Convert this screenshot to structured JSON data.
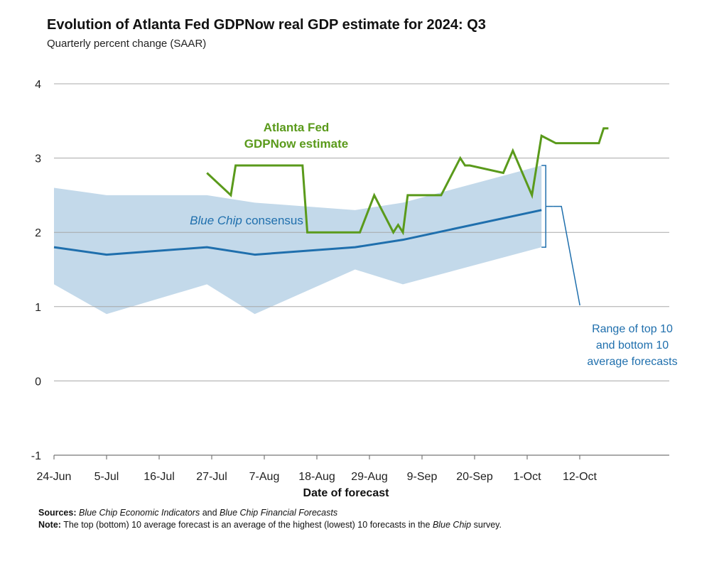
{
  "title": "Evolution of Atlanta Fed GDPNow real GDP estimate for 2024: Q3",
  "subtitle": "Quarterly percent change (SAAR)",
  "footer": {
    "sources_label": "Sources:",
    "sources_src1": "Blue Chip Economic Indicators",
    "sources_and": " and ",
    "sources_src2": "Blue Chip Financial Forecasts",
    "note_label": "Note:",
    "note_text": " The top (bottom) 10 average forecast is an average of the highest (lowest) 10 forecasts in the ",
    "note_italic": "Blue Chip",
    "note_end": " survey."
  },
  "colors": {
    "gdpnow": "#5a9a1b",
    "consensus": "#1f6fad",
    "band": "#c3d9ea",
    "grid": "#a8a8a8",
    "axis": "#777777"
  },
  "chart_data": {
    "type": "line",
    "xlabel": "Date of forecast",
    "ylabel": "",
    "ylim": [
      -1,
      4
    ],
    "yticks": [
      "-1",
      "0",
      "1",
      "2",
      "3",
      "4"
    ],
    "xticks": [
      "24-Jun",
      "5-Jul",
      "16-Jul",
      "27-Jul",
      "7-Aug",
      "18-Aug",
      "29-Aug",
      "9-Sep",
      "20-Sep",
      "1-Oct",
      "12-Oct"
    ],
    "grid": true,
    "annotations": {
      "gdpnow_label": [
        "Atlanta Fed",
        "GDPNow estimate"
      ],
      "consensus_label_italic": "Blue Chip",
      "consensus_label_rest": " consensus",
      "range_label": [
        "Range of top 10",
        "and bottom 10",
        "average forecasts"
      ]
    },
    "series": [
      {
        "name": "GDPNow estimate",
        "x": [
          "2024-07-26",
          "2024-07-31",
          "2024-08-01",
          "2024-08-08",
          "2024-08-15",
          "2024-08-16",
          "2024-08-23",
          "2024-08-27",
          "2024-08-30",
          "2024-09-03",
          "2024-09-04",
          "2024-09-05",
          "2024-09-06",
          "2024-09-13",
          "2024-09-17",
          "2024-09-18",
          "2024-09-19",
          "2024-09-26",
          "2024-09-28",
          "2024-10-02",
          "2024-10-04",
          "2024-10-07",
          "2024-10-11",
          "2024-10-16",
          "2024-10-17",
          "2024-10-18"
        ],
        "values": [
          2.8,
          2.5,
          2.9,
          2.9,
          2.9,
          2.0,
          2.0,
          2.0,
          2.5,
          2.0,
          2.1,
          2.0,
          2.5,
          2.5,
          3.0,
          2.9,
          2.9,
          2.8,
          3.1,
          2.5,
          3.3,
          3.2,
          3.2,
          3.2,
          3.4,
          3.4
        ]
      },
      {
        "name": "Blue Chip consensus",
        "x": [
          "2024-06-24",
          "2024-07-05",
          "2024-07-26",
          "2024-08-05",
          "2024-08-26",
          "2024-09-05",
          "2024-10-04"
        ],
        "values": [
          1.8,
          1.7,
          1.8,
          1.7,
          1.8,
          1.9,
          2.3
        ]
      },
      {
        "name": "Range of top 10 and bottom 10 average forecasts",
        "x": [
          "2024-06-24",
          "2024-07-05",
          "2024-07-26",
          "2024-08-05",
          "2024-08-26",
          "2024-09-05",
          "2024-10-04"
        ],
        "upper": [
          2.6,
          2.5,
          2.5,
          2.4,
          2.3,
          2.4,
          2.9
        ],
        "lower": [
          1.3,
          0.9,
          1.3,
          0.9,
          1.5,
          1.3,
          1.8
        ]
      }
    ]
  }
}
